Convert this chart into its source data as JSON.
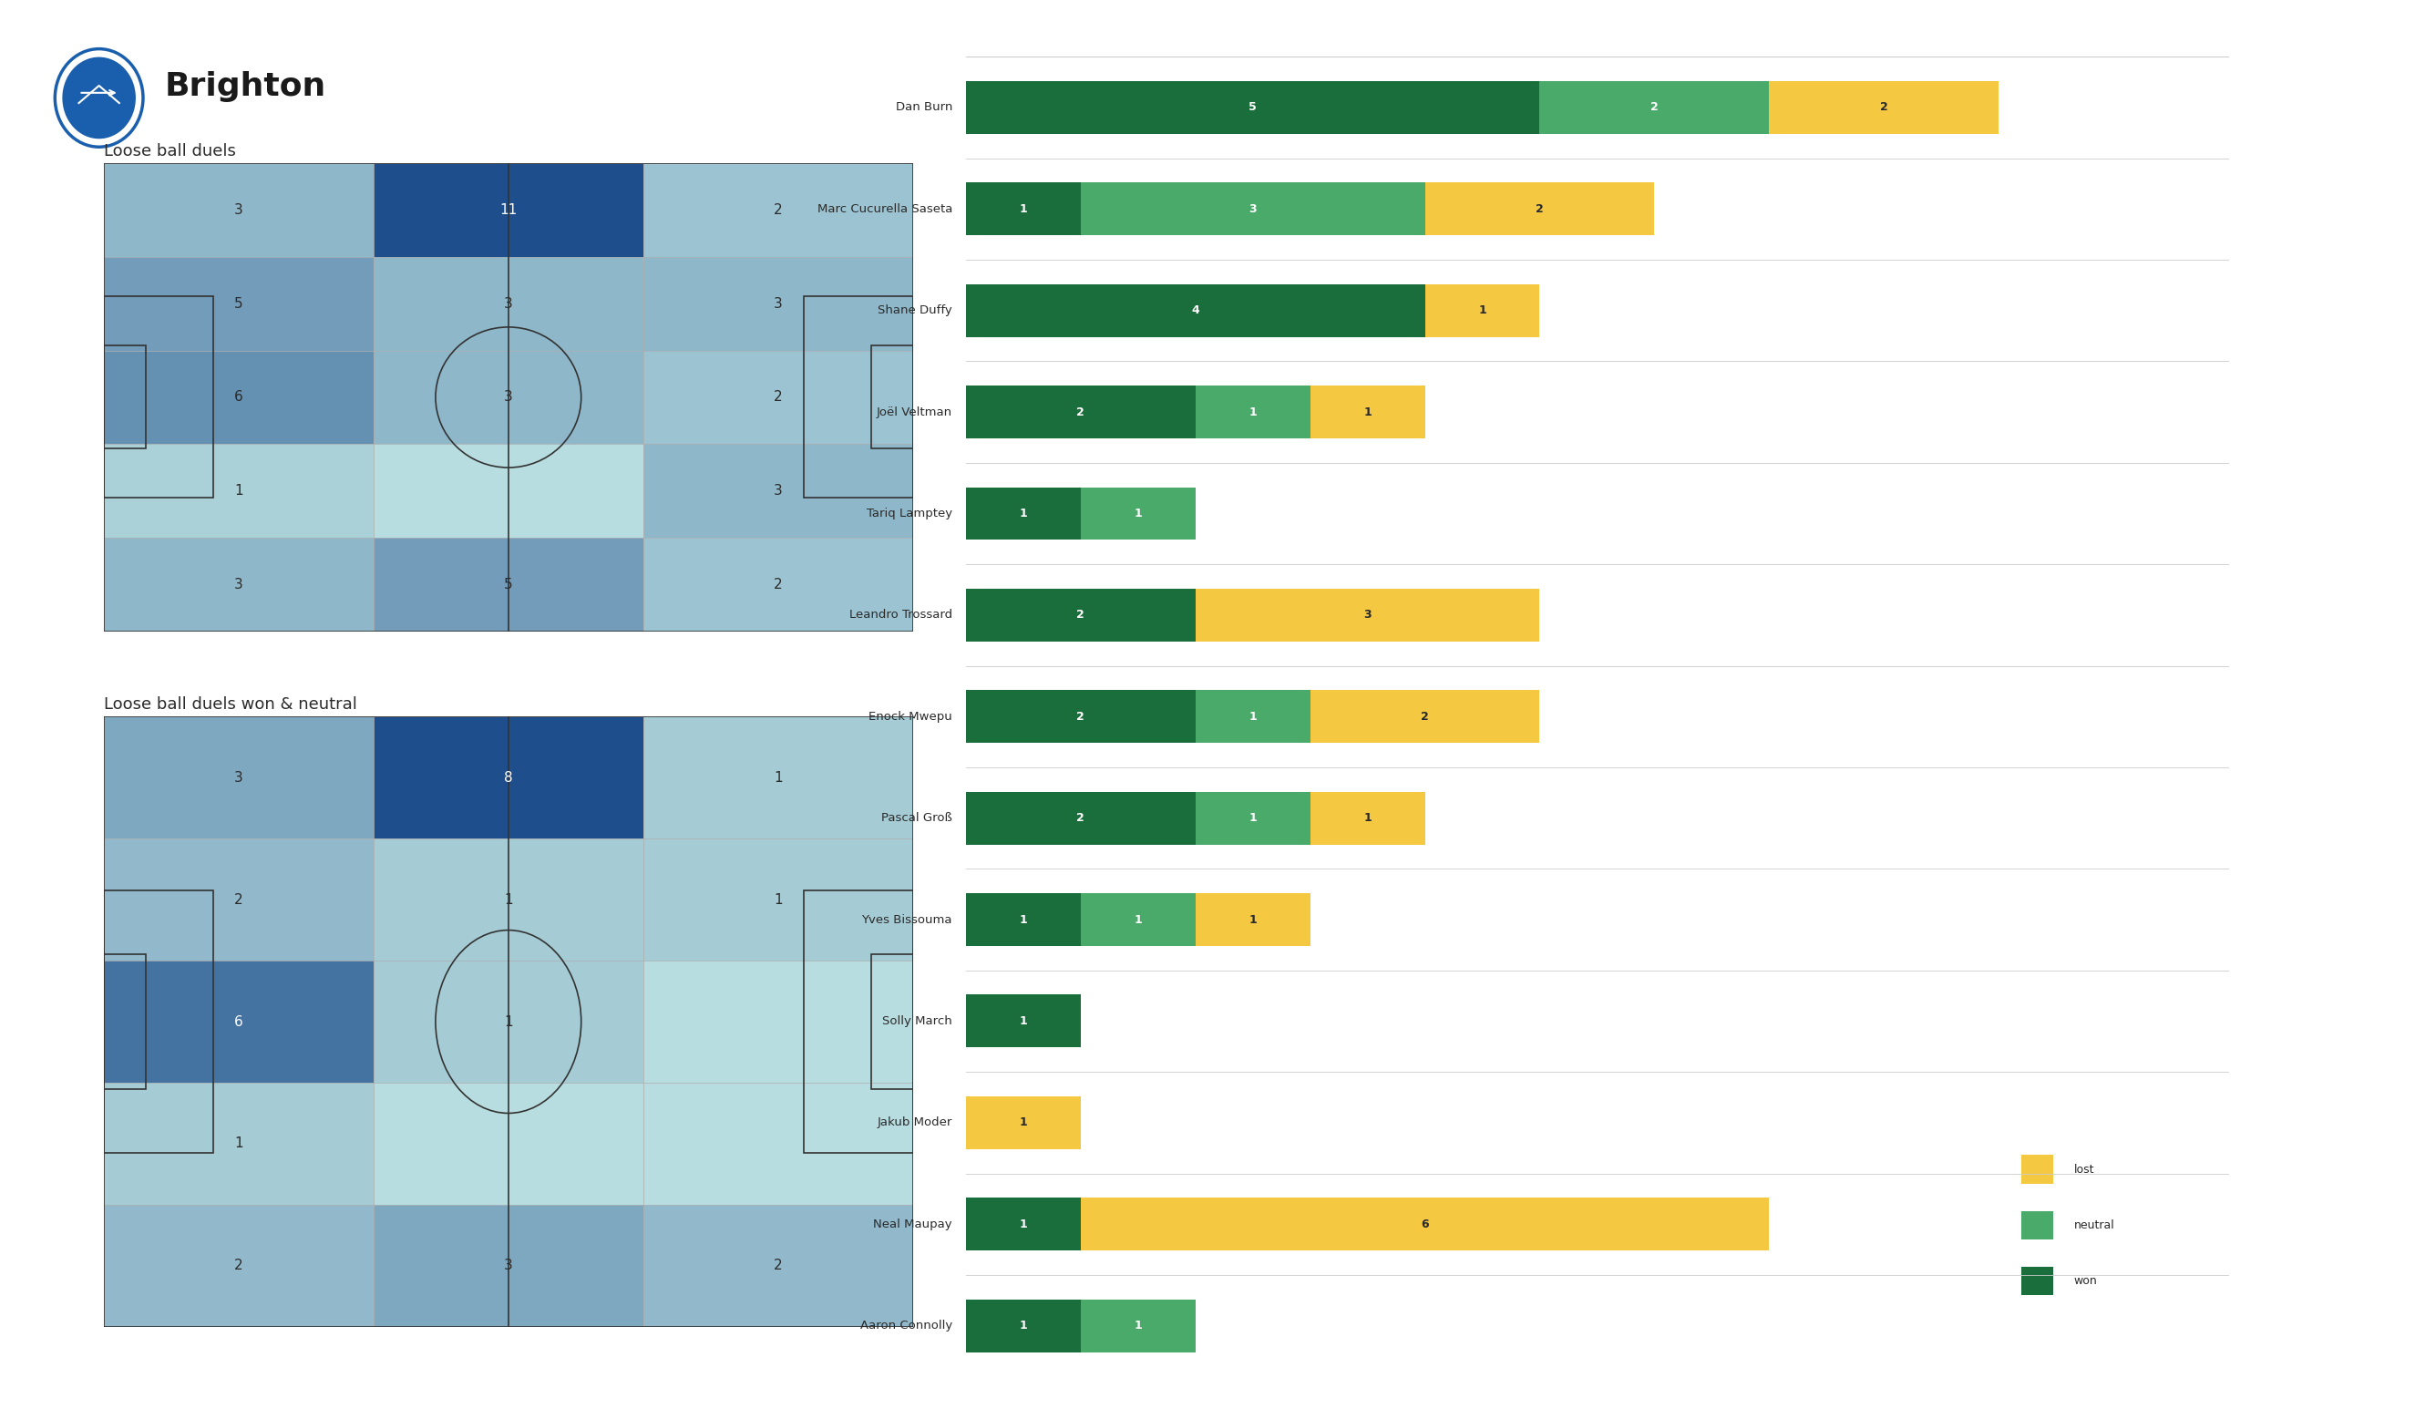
{
  "title": "Brighton",
  "subtitle1": "Loose ball duels",
  "subtitle2": "Loose ball duels won & neutral",
  "background_color": "#ffffff",
  "heatmap1": [
    [
      3,
      11,
      2
    ],
    [
      5,
      3,
      3
    ],
    [
      6,
      3,
      2
    ],
    [
      1,
      0,
      3
    ],
    [
      3,
      5,
      2
    ]
  ],
  "heatmap2": [
    [
      3,
      8,
      1
    ],
    [
      2,
      1,
      1
    ],
    [
      6,
      1,
      0
    ],
    [
      1,
      0,
      0
    ],
    [
      2,
      3,
      2
    ]
  ],
  "players": [
    "Dan Burn",
    "Marc Cucurella Saseta",
    "Shane Duffy",
    "Joël Veltman",
    "Tariq Lamptey",
    "Leandro Trossard",
    "Enock Mwepu",
    "Pascal Groß",
    "Yves Bissouma",
    "Solly March",
    "Jakub Moder",
    "Neal Maupay",
    "Aaron Connolly"
  ],
  "won": [
    5,
    1,
    4,
    2,
    1,
    2,
    2,
    2,
    1,
    1,
    0,
    1,
    1
  ],
  "neutral": [
    2,
    3,
    0,
    1,
    1,
    0,
    1,
    1,
    1,
    0,
    0,
    0,
    1
  ],
  "lost": [
    2,
    2,
    1,
    1,
    0,
    3,
    2,
    1,
    1,
    0,
    1,
    6,
    0
  ],
  "color_won": "#1a6e3c",
  "color_neutral": "#4aaa6a",
  "color_lost": "#f5c842",
  "color_separator": "#cccccc",
  "heatmap_low": "#b8dde0",
  "heatmap_high": "#1e4f8c",
  "pitch_line_color": "#333333"
}
